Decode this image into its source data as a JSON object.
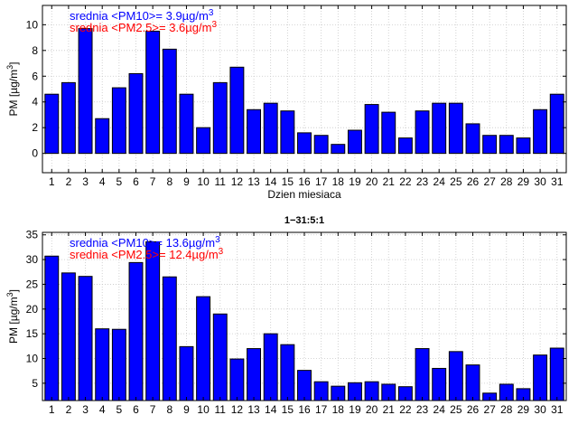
{
  "chart_data": [
    {
      "type": "bar",
      "title": "",
      "xlabel": "Dzien miesiaca",
      "ylabel": "PM [µg/m3]",
      "ylabel_parts": {
        "base": "PM [µg/m",
        "sup": "3",
        "end": "]"
      },
      "ylim": [
        -1.5,
        11.5
      ],
      "yticks": [
        0,
        2,
        4,
        6,
        8,
        10
      ],
      "categories": [
        "1",
        "2",
        "3",
        "4",
        "5",
        "6",
        "7",
        "8",
        "9",
        "10",
        "11",
        "12",
        "13",
        "14",
        "15",
        "16",
        "17",
        "18",
        "19",
        "20",
        "21",
        "22",
        "23",
        "24",
        "25",
        "26",
        "27",
        "28",
        "29",
        "30",
        "31"
      ],
      "series": [
        {
          "name": "PM",
          "color": "#0000ff",
          "values": [
            4.6,
            5.5,
            9.7,
            2.7,
            5.1,
            6.2,
            9.5,
            8.1,
            4.6,
            2.0,
            5.5,
            6.7,
            3.4,
            3.9,
            3.3,
            1.6,
            1.4,
            0.7,
            1.8,
            3.8,
            3.2,
            1.2,
            3.3,
            3.9,
            3.9,
            2.3,
            1.4,
            1.4,
            1.2,
            3.4,
            4.6
          ]
        }
      ],
      "legend": [
        {
          "text": "srednia <PM10>= 3.9µg/m",
          "sup": "3",
          "color": "#0000ff"
        },
        {
          "text": "srednia <PM2.5>= 3.6µg/m",
          "sup": "3",
          "color": "#ff0000"
        }
      ],
      "grid": true,
      "legend_position": "top-left"
    },
    {
      "type": "bar",
      "title": "1−31:5:1",
      "xlabel": "",
      "ylabel": "PM [µg/m3]",
      "ylabel_parts": {
        "base": "PM [µg/m",
        "sup": "3",
        "end": "]"
      },
      "ylim": [
        1.5,
        35.5
      ],
      "yticks": [
        5,
        10,
        15,
        20,
        25,
        30,
        35
      ],
      "categories": [
        "1",
        "2",
        "3",
        "4",
        "5",
        "6",
        "7",
        "8",
        "9",
        "10",
        "11",
        "12",
        "13",
        "14",
        "15",
        "16",
        "17",
        "18",
        "19",
        "20",
        "21",
        "22",
        "23",
        "24",
        "25",
        "26",
        "27",
        "28",
        "29",
        "30",
        "31"
      ],
      "series": [
        {
          "name": "PM",
          "color": "#0000ff",
          "values": [
            30.7,
            27.3,
            26.6,
            16.0,
            15.9,
            29.4,
            33.6,
            26.5,
            12.4,
            22.5,
            19.0,
            9.9,
            12.0,
            15.0,
            12.8,
            7.6,
            5.3,
            4.4,
            5.1,
            5.3,
            4.8,
            4.3,
            12.0,
            8.0,
            11.4,
            8.7,
            3.0,
            4.8,
            3.9,
            10.7,
            12.1
          ]
        }
      ],
      "legend": [
        {
          "text": "srednia <PM10>= 13.6µg/m",
          "sup": "3",
          "color": "#0000ff"
        },
        {
          "text": "srednia <PM2.5>= 12.4µg/m",
          "sup": "3",
          "color": "#ff0000"
        }
      ],
      "grid": true,
      "legend_position": "top-left"
    }
  ]
}
